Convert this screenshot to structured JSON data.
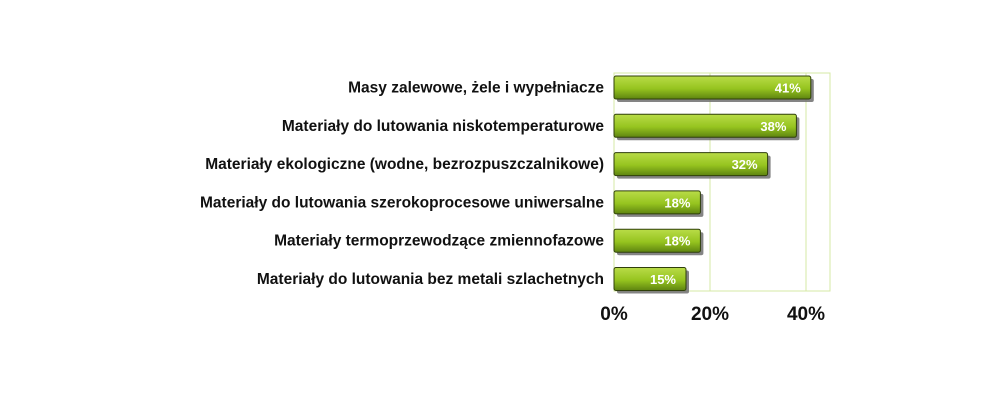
{
  "chart_data": {
    "type": "bar",
    "orientation": "horizontal",
    "title": "",
    "xlabel": "",
    "ylabel": "",
    "categories": [
      "Masy zalewowe, żele i wypełniacze",
      "Materiały do lutowania niskotemperaturowe",
      "Materiały ekologiczne (wodne, bezrozpuszczalnikowe)",
      "Materiały do lutowania szerokoprocesowe uniwersalne",
      "Materiały termoprzewodzące zmiennofazowe",
      "Materiały do lutowania bez metali szlachetnych"
    ],
    "values": [
      41,
      38,
      32,
      18,
      18,
      15
    ],
    "data_labels": [
      "41%",
      "38%",
      "32%",
      "18%",
      "18%",
      "15%"
    ],
    "xlim": [
      0,
      45
    ],
    "x_ticks": [
      0,
      20,
      40
    ],
    "x_tick_labels": [
      "0%",
      "20%",
      "40%"
    ],
    "grid": "vertical",
    "legend": "none",
    "colors": {
      "bar_light": "#b9dc48",
      "bar_mid": "#96c41f",
      "bar_dark": "#5e8410",
      "bar_edge": "#2f3f0a",
      "shadow": "#6e6e6e",
      "plot_border": "#d6e8a4",
      "gridline": "#d6e8a4"
    }
  }
}
